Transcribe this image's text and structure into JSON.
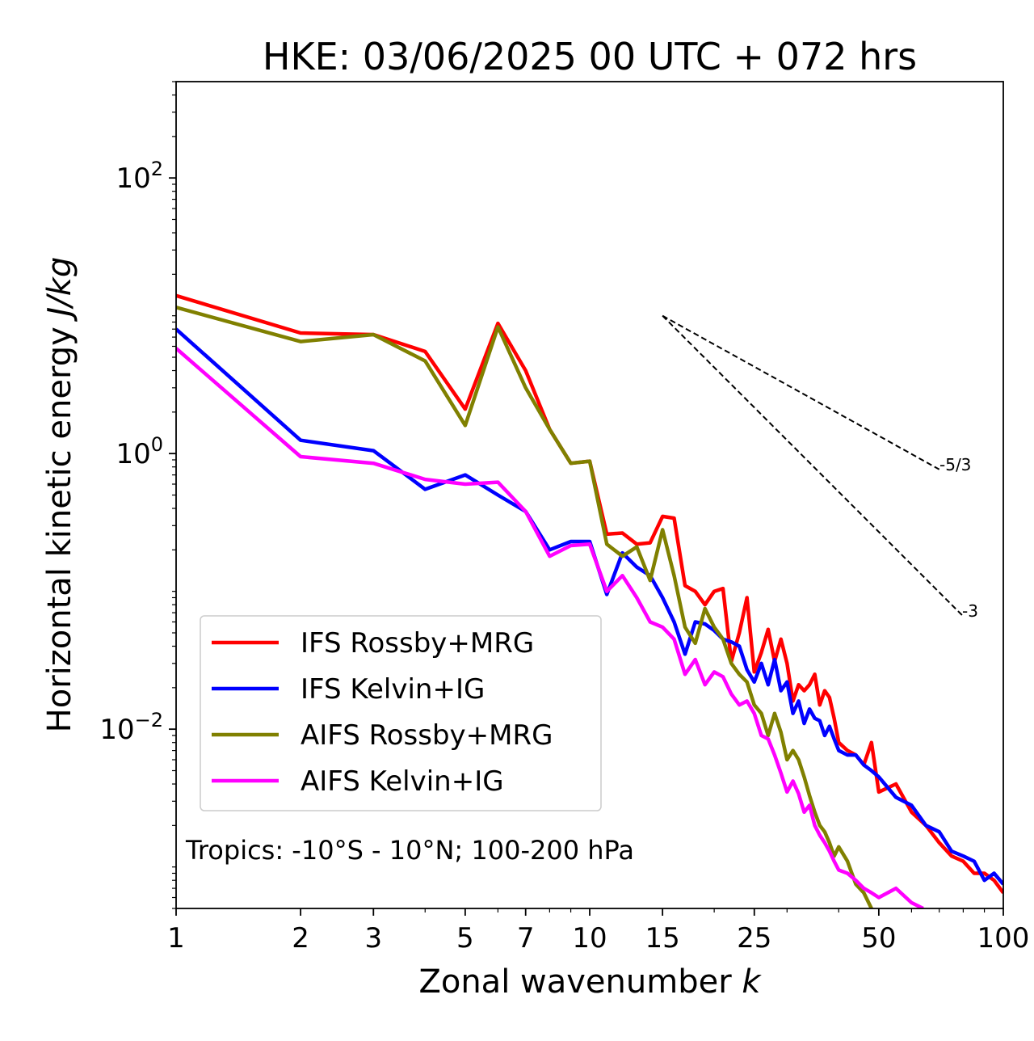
{
  "chart_data": {
    "type": "line",
    "title": "HKE: 03/06/2025 00 UTC + 072 hrs",
    "xlabel": "Zonal wavenumber",
    "xlabel_var": "k",
    "ylabel": "Horizontal kinetic energy",
    "ylabel_unit": "J/kg",
    "xscale": "log",
    "yscale": "log",
    "xlim": [
      1,
      100
    ],
    "ylim": [
      0.0005,
      500
    ],
    "xticks": [
      {
        "value": 1,
        "label": "1"
      },
      {
        "value": 2,
        "label": "2"
      },
      {
        "value": 3,
        "label": "3"
      },
      {
        "value": 5,
        "label": "5"
      },
      {
        "value": 7,
        "label": "7"
      },
      {
        "value": 10,
        "label": "10"
      },
      {
        "value": 15,
        "label": "15"
      },
      {
        "value": 25,
        "label": "25"
      },
      {
        "value": 50,
        "label": "50"
      },
      {
        "value": 100,
        "label": "100"
      }
    ],
    "yticks": [
      {
        "value": 100,
        "base": "10",
        "exp": "2"
      },
      {
        "value": 1,
        "base": "10",
        "exp": "0"
      },
      {
        "value": 0.01,
        "base": "10",
        "exp": "−2"
      }
    ],
    "grid": false,
    "legend": "lower-left",
    "annotation": "Tropics: -10°S - 10°N; 100-200 hPa",
    "reference_slopes": [
      {
        "label": "-5/3",
        "slope": -1.6667,
        "x": [
          15,
          70
        ],
        "y_start": 10
      },
      {
        "label": "-3",
        "slope": -3,
        "x": [
          15,
          80
        ],
        "y_start": 10
      }
    ],
    "series": [
      {
        "name": "IFS Rossby+MRG",
        "color": "#ff0000",
        "points": [
          [
            1,
            14
          ],
          [
            2,
            7.5
          ],
          [
            3,
            7.3
          ],
          [
            4,
            5.5
          ],
          [
            5,
            2.1
          ],
          [
            6,
            8.8
          ],
          [
            7,
            4
          ],
          [
            8,
            1.5
          ],
          [
            9,
            0.85
          ],
          [
            10,
            0.88
          ],
          [
            11,
            0.26
          ],
          [
            12,
            0.265
          ],
          [
            13,
            0.22
          ],
          [
            14,
            0.225
          ],
          [
            15,
            0.35
          ],
          [
            16,
            0.34
          ],
          [
            17,
            0.11
          ],
          [
            18,
            0.1
          ],
          [
            19,
            0.08
          ],
          [
            20,
            0.1
          ],
          [
            21,
            0.105
          ],
          [
            22,
            0.031
          ],
          [
            23,
            0.05
          ],
          [
            24,
            0.09
          ],
          [
            25,
            0.026
          ],
          [
            26,
            0.036
          ],
          [
            27,
            0.053
          ],
          [
            28,
            0.031
          ],
          [
            29,
            0.045
          ],
          [
            30,
            0.03
          ],
          [
            31,
            0.016
          ],
          [
            32,
            0.021
          ],
          [
            33,
            0.019
          ],
          [
            34,
            0.021
          ],
          [
            35,
            0.025
          ],
          [
            36,
            0.015
          ],
          [
            37,
            0.019
          ],
          [
            38,
            0.017
          ],
          [
            39,
            0.012
          ],
          [
            40,
            0.008
          ],
          [
            42,
            0.007
          ],
          [
            44,
            0.0065
          ],
          [
            46,
            0.0055
          ],
          [
            48,
            0.008
          ],
          [
            50,
            0.0035
          ],
          [
            55,
            0.004
          ],
          [
            60,
            0.0025
          ],
          [
            65,
            0.002
          ],
          [
            70,
            0.0015
          ],
          [
            75,
            0.0012
          ],
          [
            80,
            0.0011
          ],
          [
            85,
            0.0009
          ],
          [
            90,
            0.0009
          ],
          [
            95,
            0.0008
          ],
          [
            100,
            0.00065
          ]
        ]
      },
      {
        "name": "IFS Kelvin+IG",
        "color": "#0000ff",
        "points": [
          [
            1,
            8
          ],
          [
            2,
            1.25
          ],
          [
            3,
            1.05
          ],
          [
            4,
            0.55
          ],
          [
            5,
            0.7
          ],
          [
            6,
            0.5
          ],
          [
            7,
            0.38
          ],
          [
            8,
            0.2
          ],
          [
            9,
            0.23
          ],
          [
            10,
            0.23
          ],
          [
            11,
            0.095
          ],
          [
            12,
            0.19
          ],
          [
            13,
            0.15
          ],
          [
            14,
            0.13
          ],
          [
            15,
            0.09
          ],
          [
            16,
            0.06
          ],
          [
            17,
            0.035
          ],
          [
            18,
            0.06
          ],
          [
            19,
            0.058
          ],
          [
            20,
            0.052
          ],
          [
            21,
            0.045
          ],
          [
            22,
            0.043
          ],
          [
            23,
            0.04
          ],
          [
            24,
            0.027
          ],
          [
            25,
            0.022
          ],
          [
            26,
            0.03
          ],
          [
            27,
            0.021
          ],
          [
            28,
            0.032
          ],
          [
            29,
            0.019
          ],
          [
            30,
            0.022
          ],
          [
            31,
            0.013
          ],
          [
            32,
            0.016
          ],
          [
            33,
            0.011
          ],
          [
            34,
            0.014
          ],
          [
            35,
            0.012
          ],
          [
            36,
            0.0115
          ],
          [
            37,
            0.009
          ],
          [
            38,
            0.0105
          ],
          [
            39,
            0.0085
          ],
          [
            40,
            0.007
          ],
          [
            42,
            0.0065
          ],
          [
            44,
            0.0065
          ],
          [
            46,
            0.0055
          ],
          [
            48,
            0.005
          ],
          [
            50,
            0.0045
          ],
          [
            55,
            0.0032
          ],
          [
            60,
            0.0028
          ],
          [
            65,
            0.002
          ],
          [
            70,
            0.0018
          ],
          [
            75,
            0.0013
          ],
          [
            80,
            0.0012
          ],
          [
            85,
            0.0011
          ],
          [
            90,
            0.0008
          ],
          [
            95,
            0.0009
          ],
          [
            100,
            0.00075
          ]
        ]
      },
      {
        "name": "AIFS Rossby+MRG",
        "color": "#808000",
        "points": [
          [
            1,
            11.5
          ],
          [
            2,
            6.5
          ],
          [
            3,
            7.3
          ],
          [
            4,
            4.7
          ],
          [
            5,
            1.6
          ],
          [
            6,
            8.3
          ],
          [
            7,
            3
          ],
          [
            8,
            1.5
          ],
          [
            9,
            0.85
          ],
          [
            10,
            0.88
          ],
          [
            11,
            0.22
          ],
          [
            12,
            0.18
          ],
          [
            13,
            0.21
          ],
          [
            14,
            0.12
          ],
          [
            15,
            0.28
          ],
          [
            16,
            0.13
          ],
          [
            17,
            0.055
          ],
          [
            18,
            0.042
          ],
          [
            19,
            0.075
          ],
          [
            20,
            0.055
          ],
          [
            21,
            0.045
          ],
          [
            22,
            0.03
          ],
          [
            23,
            0.025
          ],
          [
            24,
            0.022
          ],
          [
            25,
            0.015
          ],
          [
            26,
            0.013
          ],
          [
            27,
            0.009
          ],
          [
            28,
            0.013
          ],
          [
            29,
            0.0095
          ],
          [
            30,
            0.006
          ],
          [
            31,
            0.007
          ],
          [
            32,
            0.006
          ],
          [
            33,
            0.0045
          ],
          [
            34,
            0.0033
          ],
          [
            35,
            0.0025
          ],
          [
            36,
            0.002
          ],
          [
            37,
            0.0018
          ],
          [
            38,
            0.0015
          ],
          [
            39,
            0.0012
          ],
          [
            40,
            0.0014
          ],
          [
            42,
            0.0011
          ],
          [
            44,
            0.00075
          ],
          [
            46,
            0.00065
          ],
          [
            48,
            0.0005
          ],
          [
            50,
            0.00035
          ],
          [
            52,
            0.00045
          ]
        ]
      },
      {
        "name": "AIFS Kelvin+IG",
        "color": "#ff00ff",
        "points": [
          [
            1,
            5.8
          ],
          [
            2,
            0.95
          ],
          [
            3,
            0.85
          ],
          [
            4,
            0.65
          ],
          [
            5,
            0.6
          ],
          [
            6,
            0.62
          ],
          [
            7,
            0.38
          ],
          [
            8,
            0.18
          ],
          [
            9,
            0.215
          ],
          [
            10,
            0.22
          ],
          [
            11,
            0.1
          ],
          [
            12,
            0.13
          ],
          [
            13,
            0.09
          ],
          [
            14,
            0.06
          ],
          [
            15,
            0.055
          ],
          [
            16,
            0.045
          ],
          [
            17,
            0.025
          ],
          [
            18,
            0.032
          ],
          [
            19,
            0.021
          ],
          [
            20,
            0.026
          ],
          [
            21,
            0.024
          ],
          [
            22,
            0.018
          ],
          [
            23,
            0.015
          ],
          [
            24,
            0.016
          ],
          [
            25,
            0.013
          ],
          [
            26,
            0.009
          ],
          [
            27,
            0.0085
          ],
          [
            28,
            0.0065
          ],
          [
            29,
            0.0048
          ],
          [
            30,
            0.0035
          ],
          [
            31,
            0.0042
          ],
          [
            32,
            0.0034
          ],
          [
            33,
            0.0025
          ],
          [
            34,
            0.0028
          ],
          [
            35,
            0.002
          ],
          [
            36,
            0.0017
          ],
          [
            37,
            0.0015
          ],
          [
            38,
            0.0013
          ],
          [
            39,
            0.0011
          ],
          [
            40,
            0.00095
          ],
          [
            42,
            0.0009
          ],
          [
            44,
            0.0008
          ],
          [
            46,
            0.0007
          ],
          [
            48,
            0.00065
          ],
          [
            50,
            0.0006
          ],
          [
            55,
            0.0007
          ],
          [
            60,
            0.00055
          ],
          [
            64,
            0.0005
          ]
        ]
      }
    ]
  }
}
